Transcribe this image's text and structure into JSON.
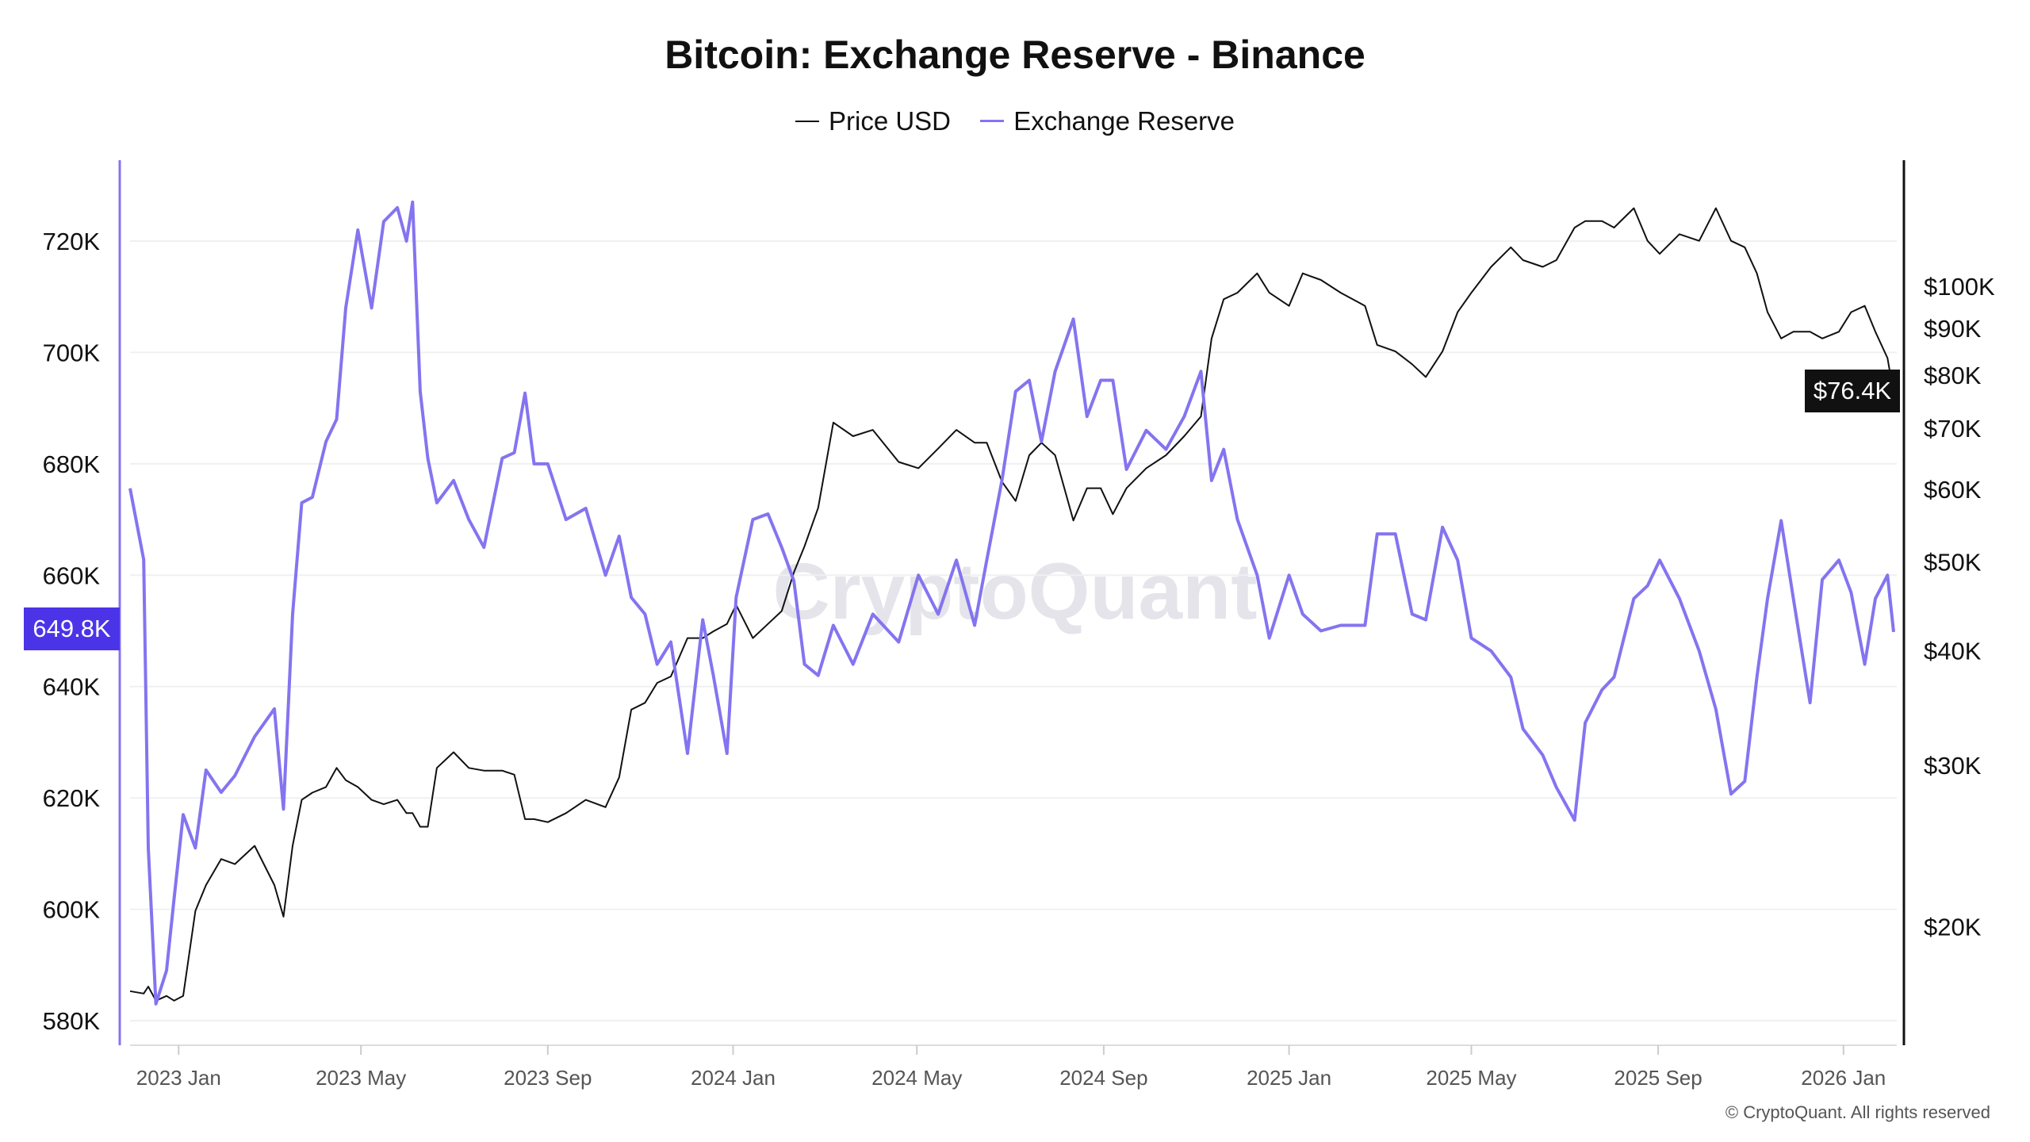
{
  "chart_data": {
    "type": "line",
    "title": "Bitcoin: Exchange Reserve - Binance",
    "colors": {
      "price": "#111111",
      "reserve": "#8474F0",
      "reserve_badge": "#4B34E8"
    },
    "xlim": [
      "2022-11-30",
      "2026-02-03"
    ],
    "x_ticks": [
      {
        "date": "2023-01-01",
        "label": "2023 Jan"
      },
      {
        "date": "2023-05-01",
        "label": "2023 May"
      },
      {
        "date": "2023-09-01",
        "label": "2023 Sep"
      },
      {
        "date": "2024-01-01",
        "label": "2024 Jan"
      },
      {
        "date": "2024-05-01",
        "label": "2024 May"
      },
      {
        "date": "2024-09-01",
        "label": "2024 Sep"
      },
      {
        "date": "2025-01-01",
        "label": "2025 Jan"
      },
      {
        "date": "2025-05-01",
        "label": "2025 May"
      },
      {
        "date": "2025-09-01",
        "label": "2025 Sep"
      },
      {
        "date": "2026-01-01",
        "label": "2026 Jan"
      }
    ],
    "left_axis": {
      "ylim": [
        576000,
        734000
      ],
      "ticks": [
        {
          "v": 580000,
          "label": "580K"
        },
        {
          "v": 600000,
          "label": "600K"
        },
        {
          "v": 620000,
          "label": "620K"
        },
        {
          "v": 640000,
          "label": "640K"
        },
        {
          "v": 660000,
          "label": "660K"
        },
        {
          "v": 680000,
          "label": "680K"
        },
        {
          "v": 700000,
          "label": "700K"
        },
        {
          "v": 720000,
          "label": "720K"
        }
      ],
      "current_label": "649.8K"
    },
    "right_axis": {
      "scale": "log",
      "ticks": [
        {
          "v": 20000,
          "label": "$20K"
        },
        {
          "v": 30000,
          "label": "$30K"
        },
        {
          "v": 40000,
          "label": "$40K"
        },
        {
          "v": 50000,
          "label": "$50K"
        },
        {
          "v": 60000,
          "label": "$60K"
        },
        {
          "v": 70000,
          "label": "$70K"
        },
        {
          "v": 80000,
          "label": "$80K"
        },
        {
          "v": 90000,
          "label": "$90K"
        },
        {
          "v": 100000,
          "label": "$100K"
        }
      ],
      "current_label": "$76.4K"
    },
    "grid": true,
    "legend_position": "top",
    "x": [
      "2022-11-30",
      "2022-12-09",
      "2022-12-12",
      "2022-12-17",
      "2022-12-24",
      "2022-12-29",
      "2023-01-04",
      "2023-01-12",
      "2023-01-19",
      "2023-01-29",
      "2023-02-07",
      "2023-02-20",
      "2023-03-05",
      "2023-03-11",
      "2023-03-17",
      "2023-03-23",
      "2023-03-30",
      "2023-04-08",
      "2023-04-15",
      "2023-04-21",
      "2023-04-29",
      "2023-05-08",
      "2023-05-16",
      "2023-05-25",
      "2023-05-31",
      "2023-06-04",
      "2023-06-09",
      "2023-06-14",
      "2023-06-20",
      "2023-07-01",
      "2023-07-11",
      "2023-07-21",
      "2023-08-02",
      "2023-08-10",
      "2023-08-17",
      "2023-08-23",
      "2023-09-01",
      "2023-09-13",
      "2023-09-26",
      "2023-10-09",
      "2023-10-18",
      "2023-10-26",
      "2023-11-04",
      "2023-11-12",
      "2023-11-21",
      "2023-12-02",
      "2023-12-12",
      "2023-12-19",
      "2023-12-28",
      "2024-01-03",
      "2024-01-14",
      "2024-01-24",
      "2024-02-02",
      "2024-02-10",
      "2024-02-17",
      "2024-02-26",
      "2024-03-07",
      "2024-03-20",
      "2024-04-02",
      "2024-04-19",
      "2024-05-02",
      "2024-05-15",
      "2024-05-27",
      "2024-06-08",
      "2024-06-16",
      "2024-06-26",
      "2024-07-05",
      "2024-07-14",
      "2024-07-22",
      "2024-07-31",
      "2024-08-12",
      "2024-08-21",
      "2024-08-30",
      "2024-09-07",
      "2024-09-16",
      "2024-09-29",
      "2024-10-12",
      "2024-10-24",
      "2024-11-04",
      "2024-11-11",
      "2024-11-19",
      "2024-11-28",
      "2024-12-11",
      "2024-12-19",
      "2025-01-01",
      "2025-01-10",
      "2025-01-22",
      "2025-02-04",
      "2025-02-20",
      "2025-02-28",
      "2025-03-12",
      "2025-03-23",
      "2025-04-01",
      "2025-04-12",
      "2025-04-22",
      "2025-05-01",
      "2025-05-14",
      "2025-05-27",
      "2025-06-04",
      "2025-06-17",
      "2025-06-26",
      "2025-07-08",
      "2025-07-15",
      "2025-07-26",
      "2025-08-03",
      "2025-08-16",
      "2025-08-25",
      "2025-09-02",
      "2025-09-15",
      "2025-09-28",
      "2025-10-09",
      "2025-10-19",
      "2025-10-28",
      "2025-11-05",
      "2025-11-12",
      "2025-11-21",
      "2025-11-29",
      "2025-12-10",
      "2025-12-18",
      "2025-12-29",
      "2026-01-06",
      "2026-01-15",
      "2026-01-22",
      "2026-01-30",
      "2026-02-03"
    ],
    "series": [
      {
        "name": "Price USD",
        "axis": "right",
        "values": [
          17000,
          16900,
          17200,
          16600,
          16800,
          16600,
          16800,
          20800,
          22200,
          23700,
          23400,
          24500,
          22200,
          20500,
          24500,
          27500,
          28000,
          28400,
          29800,
          28900,
          28400,
          27500,
          27200,
          27500,
          26600,
          26600,
          25700,
          25700,
          29800,
          31000,
          29800,
          29600,
          29600,
          29300,
          26200,
          26200,
          26000,
          26600,
          27500,
          27000,
          29100,
          34500,
          35100,
          36900,
          37500,
          41300,
          41300,
          42000,
          42800,
          44900,
          41300,
          42800,
          44200,
          48700,
          52000,
          57300,
          71000,
          68600,
          69700,
          64300,
          63300,
          66500,
          69700,
          67500,
          67500,
          61200,
          58300,
          65400,
          67500,
          65400,
          55500,
          60200,
          60200,
          56400,
          60200,
          63300,
          65400,
          68600,
          72100,
          87700,
          96800,
          98400,
          103300,
          98400,
          95200,
          103300,
          101600,
          98400,
          95200,
          86300,
          84900,
          82200,
          79600,
          84900,
          93700,
          98400,
          105000,
          110300,
          106800,
          105000,
          106800,
          115900,
          117800,
          117800,
          115900,
          121700,
          112100,
          108500,
          114000,
          112100,
          121700,
          112100,
          110300,
          103300,
          93700,
          87700,
          89200,
          89200,
          87700,
          89200,
          93700,
          95200,
          89200,
          83500,
          76400
        ]
      },
      {
        "name": "Exchange Reserve",
        "axis": "left",
        "values": [
          675600,
          662800,
          611000,
          583000,
          589000,
          602000,
          617000,
          611000,
          625000,
          621000,
          624000,
          631000,
          636000,
          618000,
          653000,
          673000,
          674000,
          684000,
          688000,
          708000,
          722000,
          708000,
          723500,
          726000,
          720000,
          727000,
          693000,
          681000,
          673000,
          677000,
          670000,
          665000,
          681000,
          682000,
          692700,
          680000,
          680000,
          670000,
          672000,
          660000,
          667000,
          656000,
          653000,
          644000,
          648000,
          628000,
          652000,
          642000,
          628000,
          656000,
          670000,
          671000,
          665000,
          659000,
          644000,
          642000,
          651000,
          644000,
          653000,
          648000,
          660000,
          653000,
          662700,
          651000,
          662700,
          677000,
          693000,
          695000,
          684000,
          696600,
          706000,
          688500,
          695000,
          695000,
          679000,
          686000,
          682600,
          688500,
          696600,
          677000,
          682600,
          670000,
          660000,
          648700,
          660000,
          653000,
          650000,
          651000,
          651000,
          667400,
          667400,
          653000,
          652000,
          668600,
          662700,
          648700,
          646400,
          641700,
          632400,
          627700,
          621900,
          616000,
          633500,
          639400,
          641700,
          655800,
          658100,
          662700,
          655800,
          646400,
          635900,
          620700,
          623000,
          641700,
          655800,
          669800,
          655800,
          637100,
          659200,
          662700,
          656900,
          644000,
          655800,
          660000,
          649800
        ]
      }
    ]
  },
  "watermark": "CryptoQuant",
  "copyright": "© CryptoQuant. All rights reserved"
}
